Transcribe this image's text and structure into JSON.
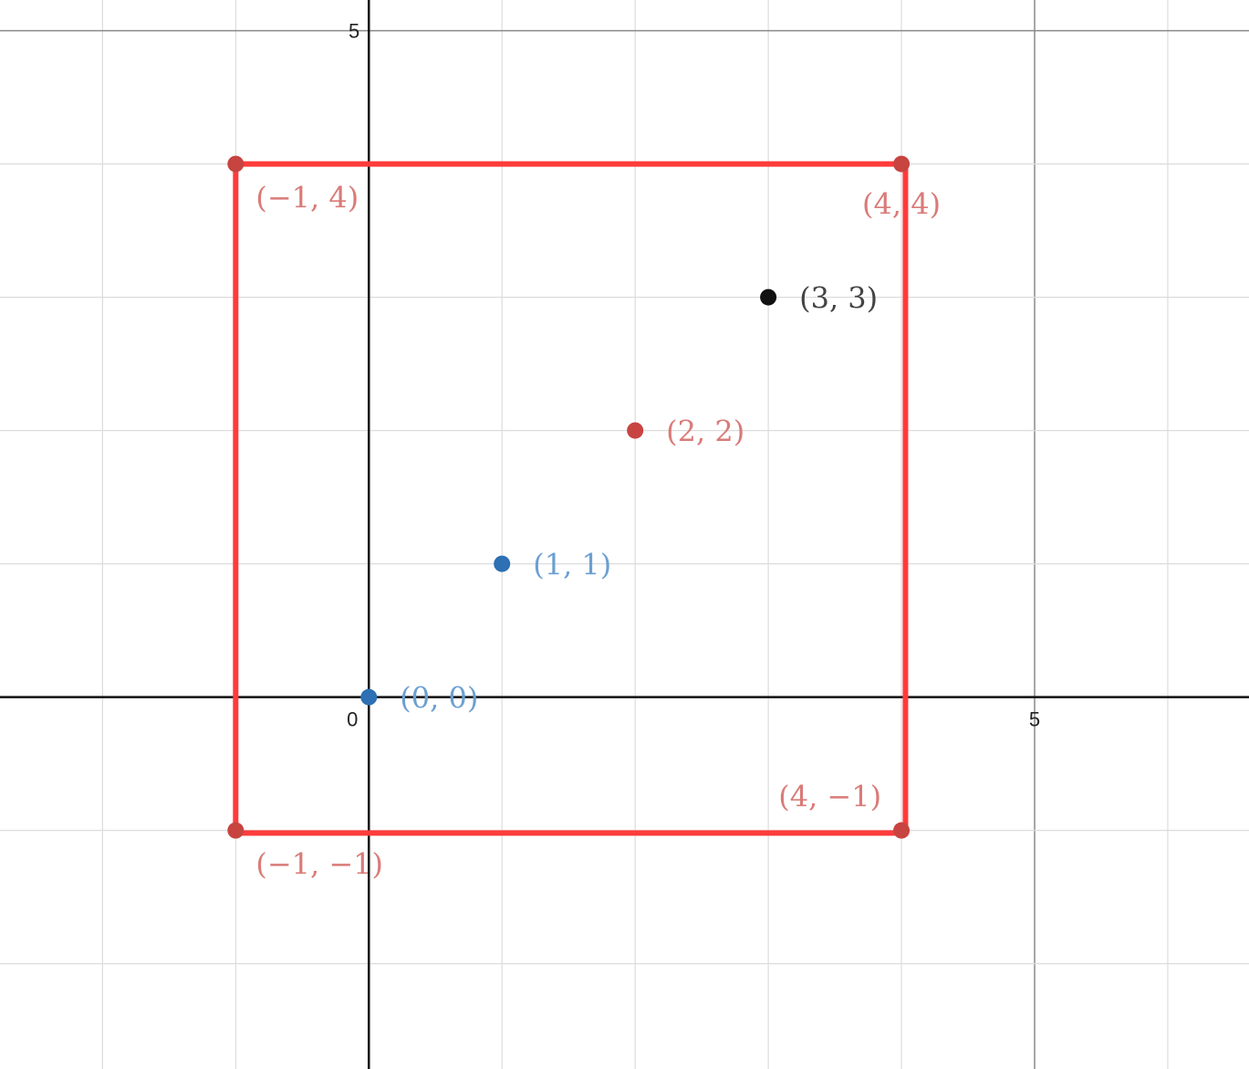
{
  "chart_data": {
    "type": "scatter",
    "title": "",
    "xlabel": "",
    "ylabel": "",
    "xlim": [
      -2.77,
      6.61
    ],
    "ylim": [
      -2.79,
      5.23
    ],
    "grid": true,
    "minor_grid_step": 1,
    "major_grid_step": 5,
    "x_ticks": [
      {
        "value": 0,
        "label": "0"
      },
      {
        "value": 5,
        "label": "5"
      }
    ],
    "y_ticks": [
      {
        "value": 5,
        "label": "5"
      }
    ],
    "points": [
      {
        "x": -1,
        "y": 4,
        "label": "(−1, 4)",
        "color": "#c74440",
        "label_color": "#d97b78"
      },
      {
        "x": 4,
        "y": 4,
        "label": "(4, 4)",
        "color": "#c74440",
        "label_color": "#d97b78"
      },
      {
        "x": 3,
        "y": 3,
        "label": "(3, 3)",
        "color": "#111111",
        "label_color": "#444444"
      },
      {
        "x": 2,
        "y": 2,
        "label": "(2, 2)",
        "color": "#c74440",
        "label_color": "#d97b78"
      },
      {
        "x": 1,
        "y": 1,
        "label": "(1, 1)",
        "color": "#2d70b3",
        "label_color": "#6b9fd1"
      },
      {
        "x": 0,
        "y": 0,
        "label": "(0, 0)",
        "color": "#2d70b3",
        "label_color": "#6b9fd1"
      },
      {
        "x": 4,
        "y": -1,
        "label": "(4, −1)",
        "color": "#c74440",
        "label_color": "#d97b78"
      },
      {
        "x": -1,
        "y": -1,
        "label": "(−1, −1)",
        "color": "#c74440",
        "label_color": "#d97b78"
      }
    ],
    "polygon": {
      "color": "#ff3b3b",
      "vertices": [
        [
          -1,
          4
        ],
        [
          4.03,
          4
        ],
        [
          4.03,
          -1.02
        ],
        [
          -1,
          -1.02
        ]
      ]
    }
  }
}
